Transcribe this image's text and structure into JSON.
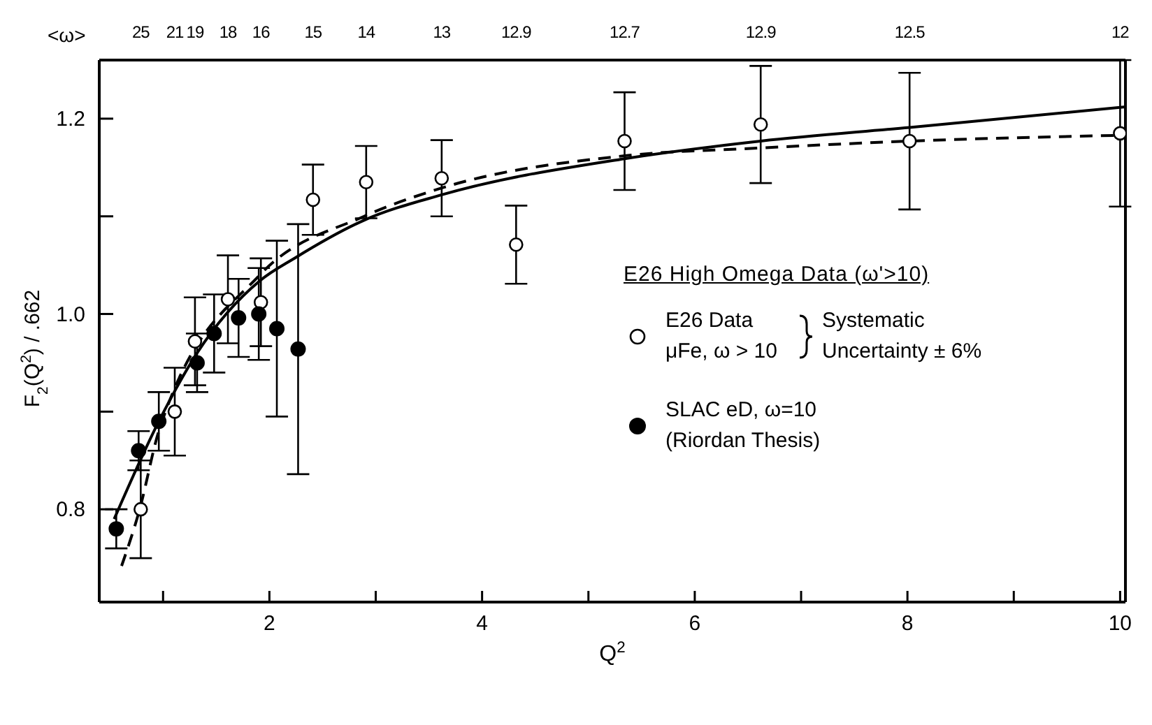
{
  "chart_data": {
    "type": "scatter",
    "xlabel": "Q$^{2}$",
    "ylabel": "F$_{2}$(Q$^{2}$) / .662",
    "xlim": [
      0.4,
      10.05
    ],
    "ylim": [
      0.705,
      1.26
    ],
    "xticks": [
      {
        "value": 1,
        "label": null
      },
      2,
      {
        "value": 3,
        "label": null
      },
      4,
      {
        "value": 5,
        "label": null
      },
      6,
      {
        "value": 7,
        "label": null
      },
      8,
      {
        "value": 9,
        "label": null
      },
      10
    ],
    "yticks": [
      0.8,
      {
        "value": 0.9,
        "label": null
      },
      {
        "value": 1.0,
        "label": "1.0"
      },
      {
        "value": 1.1,
        "label": null
      },
      1.2
    ],
    "legend": "right",
    "legend_title": "E26 High Omega Data (ω'>10)",
    "annotations": [
      "<ω>",
      "Systematic Uncertainty ± 6%",
      "25",
      "21",
      "19",
      "18",
      "16",
      "15",
      "14",
      "13",
      "12.9",
      "12.7",
      "12.9",
      "12.5",
      "12"
    ],
    "series": [
      {
        "type": "line",
        "color": "#000000",
        "line_style": "solid",
        "marker": "none",
        "x": [
          0.54,
          0.96,
          1.32,
          1.91,
          2.25,
          2.89,
          3.62,
          5.34,
          6.62,
          8.02,
          10.05
        ],
        "values": [
          0.79,
          0.89,
          0.96,
          1.034,
          1.058,
          1.096,
          1.122,
          1.159,
          1.177,
          1.191,
          1.212
        ]
      },
      {
        "type": "line",
        "color": "#000000",
        "line_style": "dashed",
        "marker": "none",
        "x": [
          0.61,
          0.78,
          0.96,
          1.91,
          2.89,
          3.62,
          5.34,
          6.62,
          8.02,
          10.0
        ],
        "values": [
          0.742,
          0.8,
          0.88,
          1.04,
          1.1,
          1.129,
          1.162,
          1.17,
          1.177,
          1.183
        ]
      },
      {
        "name": "E26 Data\nμFe, ω > 10",
        "color": "#000000",
        "marker": "open_circle",
        "x": [
          0.79,
          1.11,
          1.3,
          1.61,
          1.92,
          2.41,
          2.91,
          3.62,
          4.32,
          5.34,
          6.62,
          8.02,
          10.0
        ],
        "values": [
          0.8,
          0.9,
          0.972,
          1.015,
          1.012,
          1.117,
          1.135,
          1.139,
          1.071,
          1.177,
          1.194,
          1.177,
          1.185
        ],
        "errors": [
          0.05,
          0.045,
          0.045,
          0.045,
          0.045,
          0.036,
          0.037,
          0.039,
          0.04,
          0.05,
          0.06,
          0.07,
          0.075
        ]
      },
      {
        "name": "SLAC eD, ω=10\n(Riordan Thesis)",
        "color": "#000000",
        "marker": "circle",
        "x": [
          0.56,
          0.77,
          0.96,
          1.32,
          1.48,
          1.71,
          1.9,
          2.07,
          2.27
        ],
        "values": [
          0.78,
          0.86,
          0.89,
          0.95,
          0.98,
          0.996,
          1.0,
          0.985,
          0.964
        ],
        "errors": [
          0.02,
          0.02,
          0.03,
          0.03,
          0.04,
          0.04,
          0.047,
          0.09,
          0.128
        ]
      }
    ]
  }
}
